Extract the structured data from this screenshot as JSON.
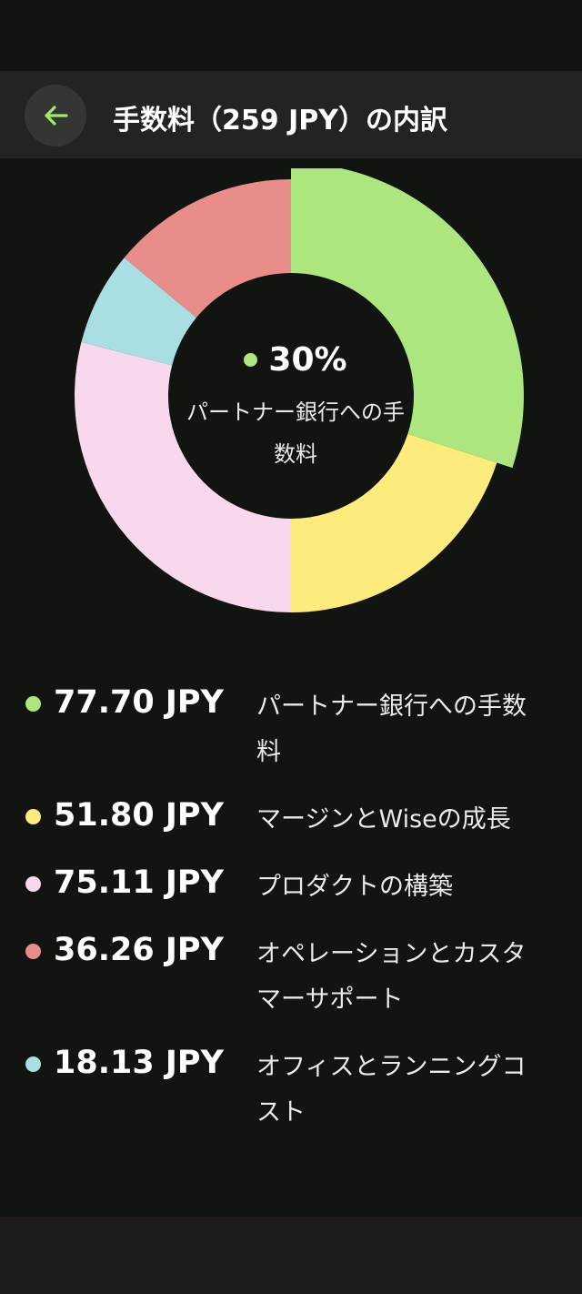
{
  "header": {
    "title": "手数料（259 JPY）の内訳",
    "back_icon": "arrow-left-icon",
    "back_icon_color": "#9fe870"
  },
  "chart_data": {
    "type": "pie",
    "variant": "donut",
    "categories": [
      "パートナー銀行への手数料",
      "マージンとWiseの成長",
      "プロダクトの構築",
      "オペレーションとカスタマーサポート",
      "オフィスとランニングコスト"
    ],
    "values": [
      77.7,
      51.8,
      75.11,
      36.26,
      18.13
    ],
    "colors": [
      "#ade57f",
      "#fdeb7e",
      "#f7d8ec",
      "#e98d8b",
      "#a9dfe2"
    ],
    "slice_order": [
      0,
      1,
      2,
      4,
      3
    ]
  },
  "center": {
    "percent": "30%",
    "label": "パートナー銀行への手数料",
    "dot_color": "#ade57f"
  },
  "breakdown": [
    {
      "amount": "77.70 JPY",
      "label": "パートナー銀行への手数料",
      "color": "#ade57f"
    },
    {
      "amount": "51.80 JPY",
      "label": "マージンとWiseの成長",
      "color": "#fdeb7e"
    },
    {
      "amount": "75.11 JPY",
      "label": "プロダクトの構築",
      "color": "#f7d8ec"
    },
    {
      "amount": "36.26 JPY",
      "label": "オペレーションとカスタマーサポート",
      "color": "#e98d8b"
    },
    {
      "amount": "18.13 JPY",
      "label": "オフィスとランニングコスト",
      "color": "#a9dfe2"
    }
  ]
}
